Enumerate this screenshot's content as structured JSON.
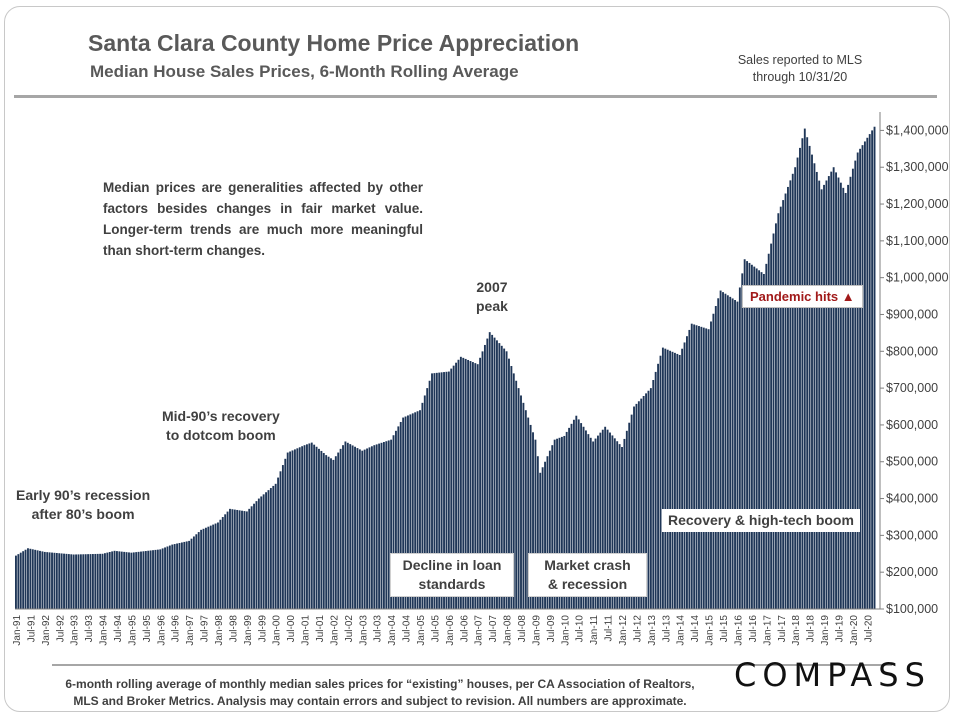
{
  "header": {
    "title": "Santa Clara County Home Price Appreciation",
    "subtitle": "Median House Sales Prices, 6-Month Rolling Average",
    "mls_note_line1": "Sales reported to MLS",
    "mls_note_line2": "through 10/31/20"
  },
  "annotations": {
    "description": "Median prices are generalities affected by other factors besides changes in fair market value. Longer-term trends are much more meaningful than short-term changes.",
    "early90s_line1": "Early 90’s recession",
    "early90s_line2": "after 80’s boom",
    "mid90s_line1": "Mid-90’s recovery",
    "mid90s_line2": "to dotcom boom",
    "peak_line1": "2007",
    "peak_line2": "peak",
    "decline_line1": "Decline in loan",
    "decline_line2": "standards",
    "crash_line1": "Market crash",
    "crash_line2": "& recession",
    "recovery": "Recovery & high-tech boom",
    "pandemic": "Pandemic hits ▲"
  },
  "footer": {
    "footnote_line1": "6-month rolling average of monthly median sales prices for “existing” houses, per CA Association of Realtors,",
    "footnote_line2": "MLS and Broker Metrics.  Analysis may contain errors and subject to revision. All numbers are approximate.",
    "logo": "COMPASS"
  },
  "colors": {
    "bar": "#1f3657",
    "text": "#404040",
    "pandemic": "#a11a1a"
  },
  "chart_data": {
    "type": "bar",
    "title": "Santa Clara County Home Price Appreciation",
    "subtitle": "Median House Sales Prices, 6-Month Rolling Average",
    "ylim": [
      100000,
      1450000
    ],
    "yticks": [
      100000,
      200000,
      300000,
      400000,
      500000,
      600000,
      700000,
      800000,
      900000,
      1000000,
      1100000,
      1200000,
      1300000,
      1400000
    ],
    "ytick_labels": [
      "$100,000",
      "$200,000",
      "$300,000",
      "$400,000",
      "$500,000",
      "$600,000",
      "$700,000",
      "$800,000",
      "$900,000",
      "$1,000,000",
      "$1,100,000",
      "$1,200,000",
      "$1,300,000",
      "$1,400,000"
    ],
    "x_labels": [
      "Jan-91",
      "Jul-91",
      "Jan-92",
      "Jul-92",
      "Jan-93",
      "Jul-93",
      "Jan-94",
      "Jul-94",
      "Jan-95",
      "Jul-95",
      "Jan-96",
      "Jul-96",
      "Jan-97",
      "Jul-97",
      "Jan-98",
      "Jul-98",
      "Jan-99",
      "Jul-99",
      "Jan-00",
      "Jul-00",
      "Jan-01",
      "Jul-01",
      "Jan-02",
      "Jul-02",
      "Jan-03",
      "Jul-03",
      "Jan-04",
      "Jul-04",
      "Jan-05",
      "Jul-05",
      "Jan-06",
      "Jul-06",
      "Jan-07",
      "Jul-07",
      "Jan-08",
      "Jul-08",
      "Jan-09",
      "Jul-09",
      "Jan-10",
      "Jul-10",
      "Jan-11",
      "Jul-11",
      "Jan-12",
      "Jul-12",
      "Jan-13",
      "Jul-13",
      "Jan-14",
      "Jul-14",
      "Jan-15",
      "Jul-15",
      "Jan-16",
      "Jul-16",
      "Jan-17",
      "Jul-17",
      "Jan-18",
      "Jul-18",
      "Jan-19",
      "Jul-19",
      "Jan-20",
      "Jul-20"
    ],
    "series_start": "Jan-91",
    "series_end": "Oct-20",
    "anchors": [
      [
        "1991-01",
        245000
      ],
      [
        "1991-06",
        265000
      ],
      [
        "1992-01",
        255000
      ],
      [
        "1993-01",
        248000
      ],
      [
        "1994-01",
        250000
      ],
      [
        "1994-06",
        258000
      ],
      [
        "1995-01",
        253000
      ],
      [
        "1996-01",
        262000
      ],
      [
        "1996-06",
        275000
      ],
      [
        "1997-01",
        285000
      ],
      [
        "1997-06",
        315000
      ],
      [
        "1998-01",
        335000
      ],
      [
        "1998-06",
        372000
      ],
      [
        "1999-01",
        365000
      ],
      [
        "1999-06",
        400000
      ],
      [
        "2000-01",
        440000
      ],
      [
        "2000-06",
        525000
      ],
      [
        "2001-01",
        545000
      ],
      [
        "2001-04",
        552000
      ],
      [
        "2001-10",
        518000
      ],
      [
        "2002-01",
        505000
      ],
      [
        "2002-06",
        555000
      ],
      [
        "2003-01",
        530000
      ],
      [
        "2003-06",
        545000
      ],
      [
        "2004-01",
        560000
      ],
      [
        "2004-06",
        620000
      ],
      [
        "2005-01",
        640000
      ],
      [
        "2005-06",
        740000
      ],
      [
        "2006-01",
        745000
      ],
      [
        "2006-06",
        785000
      ],
      [
        "2007-01",
        765000
      ],
      [
        "2007-06",
        852000
      ],
      [
        "2008-01",
        800000
      ],
      [
        "2008-06",
        700000
      ],
      [
        "2009-01",
        560000
      ],
      [
        "2009-03",
        470000
      ],
      [
        "2009-09",
        560000
      ],
      [
        "2010-01",
        570000
      ],
      [
        "2010-06",
        625000
      ],
      [
        "2011-01",
        555000
      ],
      [
        "2011-06",
        595000
      ],
      [
        "2012-01",
        540000
      ],
      [
        "2012-06",
        650000
      ],
      [
        "2013-01",
        700000
      ],
      [
        "2013-06",
        810000
      ],
      [
        "2014-01",
        790000
      ],
      [
        "2014-06",
        875000
      ],
      [
        "2015-01",
        860000
      ],
      [
        "2015-06",
        965000
      ],
      [
        "2016-01",
        935000
      ],
      [
        "2016-04",
        1050000
      ],
      [
        "2016-12",
        1010000
      ],
      [
        "2017-06",
        1175000
      ],
      [
        "2018-01",
        1300000
      ],
      [
        "2018-05",
        1405000
      ],
      [
        "2018-12",
        1240000
      ],
      [
        "2019-05",
        1300000
      ],
      [
        "2019-10",
        1230000
      ],
      [
        "2020-03",
        1340000
      ],
      [
        "2020-10",
        1410000
      ]
    ]
  }
}
